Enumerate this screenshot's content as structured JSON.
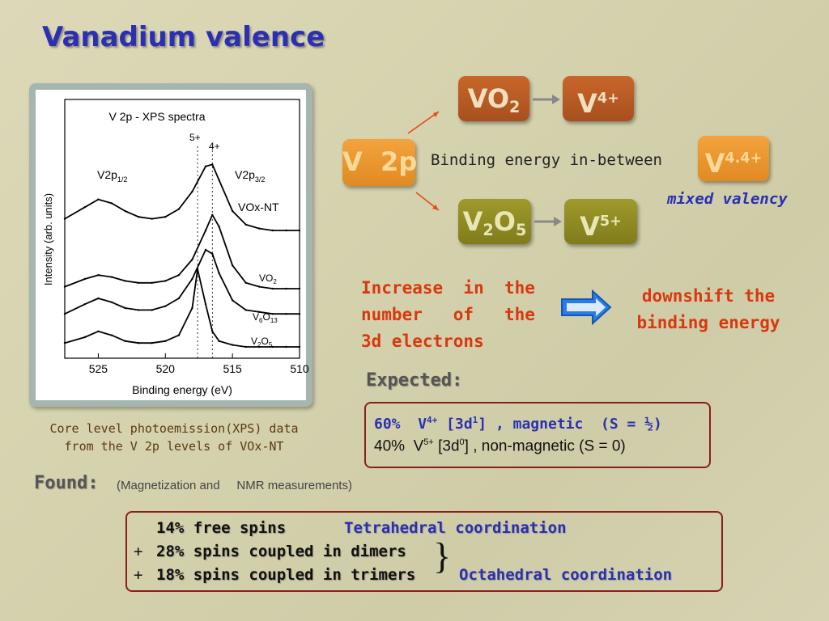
{
  "slide": {
    "title": "Vanadium valence"
  },
  "figure": {
    "title": "V 2p - XPS spectra",
    "ylabel": "Intensity (arb. units)",
    "xlabel": "Binding energy (eV)",
    "peak_label_left": "V2p",
    "peak_label_left_sub": "1/2",
    "peak_label_right": "V2p",
    "peak_label_right_sub": "3/2",
    "marker_5plus": "5+",
    "marker_4plus": "4+",
    "x_ticks": [
      "525",
      "520",
      "515",
      "510"
    ],
    "curves": [
      {
        "label": "VOx-NT"
      },
      {
        "label": "VO",
        "sub": "2"
      },
      {
        "label": "V",
        "sub1": "6",
        "mid": "O",
        "sub2": "13"
      },
      {
        "label": "V",
        "sub1": "2",
        "mid": "O",
        "sub2": "5"
      }
    ]
  },
  "caption": {
    "line1": "Core level photoemission(XPS) data",
    "line2": "from the V 2p levels of VOx-NT"
  },
  "diagram": {
    "v2p": "V  2p",
    "vo2": "VO",
    "vo2_sub": "2",
    "v4": "V",
    "v4_sup": "4+",
    "v2o5_a": "V",
    "v2o5_sub1": "2",
    "v2o5_b": "O",
    "v2o5_sub2": "5",
    "v5": "V",
    "v5_sup": "5+",
    "v44": "V",
    "v44_sup": "4.4+",
    "binding_text": "Binding energy in-between",
    "mixed_valency": "mixed valency"
  },
  "increase": {
    "line1": "Increase  in  the",
    "line2": "number   of   the",
    "line3": "3d electrons"
  },
  "downshift": {
    "line1": "downshift the",
    "line2": "binding energy"
  },
  "expected": {
    "label": "Expected:",
    "row1": {
      "pct": "60%",
      "ion": "V",
      "ion_sup": "4+",
      "config": "[3d",
      "config_sup": "1",
      "rest": "] , magnetic  (S = ½)"
    },
    "row2": {
      "pct": "40%",
      "ion": "V",
      "ion_sup": "5+",
      "config": "[3d",
      "config_sup": "0",
      "rest": "] , non-magnetic (S = 0)"
    }
  },
  "found": {
    "label": "Found:",
    "note": "(Magnetization and     NMR measurements)",
    "row1": "14% free spins",
    "row2_prefix": "+",
    "row2": "28% spins coupled in dimers",
    "row3_prefix": "+",
    "row3": "18% spins coupled in trimers",
    "tetra": "Tetrahedral coordination",
    "octa": "Octahedral coordination",
    "brace": "}"
  },
  "colors": {
    "title_blue": "#2b2fb3",
    "red_text": "#d9380f",
    "box_brown": "#b2572a",
    "box_orange": "#ef9a30",
    "box_olive": "#8f8b22",
    "arrow_blue": "#2a7de8"
  },
  "chart_data": {
    "type": "line",
    "title": "V 2p - XPS spectra",
    "xlabel": "Binding energy (eV)",
    "ylabel": "Intensity (arb. units)",
    "xlim": [
      527.5,
      510
    ],
    "x_ticks": [
      525,
      520,
      515,
      510
    ],
    "reference_lines_eV": [
      517.6,
      516.5
    ],
    "series": [
      {
        "name": "VOx-NT",
        "x": [
          527.5,
          526,
          525,
          524,
          523,
          522,
          521,
          520,
          519,
          518,
          517,
          516.5,
          516,
          515,
          514,
          513,
          512,
          511,
          510
        ],
        "y": [
          0.66,
          0.72,
          0.76,
          0.74,
          0.7,
          0.67,
          0.66,
          0.67,
          0.71,
          0.8,
          0.93,
          0.94,
          0.86,
          0.7,
          0.63,
          0.61,
          0.6,
          0.6,
          0.6
        ]
      },
      {
        "name": "VO2",
        "x": [
          527.5,
          526,
          525,
          524,
          523,
          522,
          521,
          520,
          519,
          518,
          517,
          516.5,
          516,
          515,
          514,
          513,
          512,
          511,
          510
        ],
        "y": [
          0.31,
          0.35,
          0.37,
          0.36,
          0.34,
          0.33,
          0.33,
          0.34,
          0.37,
          0.45,
          0.6,
          0.68,
          0.62,
          0.42,
          0.33,
          0.31,
          0.3,
          0.3,
          0.3
        ]
      },
      {
        "name": "V6O13",
        "x": [
          527.5,
          526,
          525,
          524,
          523,
          522,
          521,
          520,
          519,
          518,
          517,
          516.5,
          516,
          515,
          514,
          513,
          512,
          511,
          510
        ],
        "y": [
          0.17,
          0.22,
          0.25,
          0.23,
          0.2,
          0.19,
          0.19,
          0.21,
          0.25,
          0.35,
          0.5,
          0.48,
          0.38,
          0.24,
          0.19,
          0.18,
          0.17,
          0.17,
          0.17
        ]
      },
      {
        "name": "V2O5",
        "x": [
          527.5,
          526,
          525,
          524,
          523,
          522,
          521,
          520,
          519,
          518,
          517.6,
          517,
          516.5,
          516,
          515,
          514,
          513,
          512,
          511,
          510
        ],
        "y": [
          0.02,
          0.05,
          0.08,
          0.06,
          0.03,
          0.02,
          0.02,
          0.03,
          0.06,
          0.2,
          0.4,
          0.22,
          0.08,
          0.03,
          0.01,
          0.0,
          0.0,
          0.0,
          0.0,
          0.0
        ]
      }
    ]
  }
}
